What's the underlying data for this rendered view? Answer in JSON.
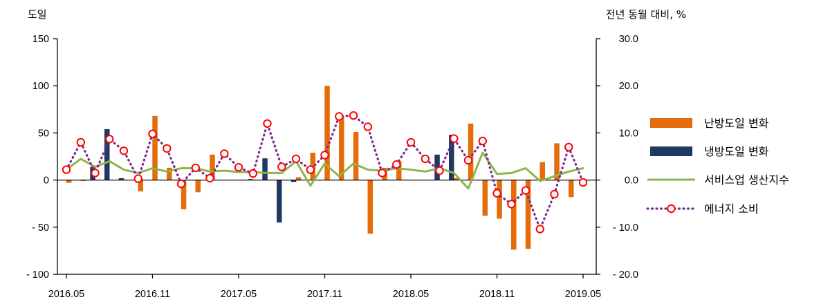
{
  "chart_data": {
    "type": "bar",
    "left_axis_label": "도일",
    "right_axis_label": "전년 동월 대비, %",
    "left_ylim": [
      -100,
      150
    ],
    "left_ticks": [
      -100,
      -50,
      0,
      50,
      100,
      150
    ],
    "left_tick_labels": [
      "- 100",
      "- 50",
      "0",
      "50",
      "100",
      "150"
    ],
    "right_ylim": [
      -20,
      30
    ],
    "right_ticks": [
      -20,
      -10,
      0,
      10,
      20,
      30
    ],
    "right_tick_labels": [
      "- 20.0",
      "- 10.0",
      "0.0",
      "10.0",
      "20.0",
      "30.0"
    ],
    "x_tick_labels": [
      "2016.05",
      "2016.11",
      "2017.05",
      "2017.11",
      "2018.05",
      "2018.11",
      "2019.05"
    ],
    "x_tick_month_index": [
      0,
      6,
      12,
      18,
      24,
      30,
      36
    ],
    "months": [
      "2016.05",
      "2016.06",
      "2016.07",
      "2016.08",
      "2016.09",
      "2016.10",
      "2016.11",
      "2016.12",
      "2017.01",
      "2017.02",
      "2017.03",
      "2017.04",
      "2017.05",
      "2017.06",
      "2017.07",
      "2017.08",
      "2017.09",
      "2017.10",
      "2017.11",
      "2017.12",
      "2018.01",
      "2018.02",
      "2018.03",
      "2018.04",
      "2018.05",
      "2018.06",
      "2018.07",
      "2018.08",
      "2018.09",
      "2018.10",
      "2018.11",
      "2018.12",
      "2019.01",
      "2019.02",
      "2019.03",
      "2019.04",
      "2019.05"
    ],
    "grid": false,
    "legend_position": "right",
    "series": [
      {
        "name": "난방도일 변화",
        "kind": "bar",
        "axis": "left",
        "color": "#E46C0A",
        "values": [
          -3,
          -1,
          0,
          0,
          0,
          -12,
          68,
          13,
          -31,
          -13,
          27,
          0,
          0,
          0,
          0,
          0,
          3,
          29,
          100,
          67,
          51,
          -57,
          13,
          20,
          0,
          0,
          0,
          2,
          60,
          -38,
          -41,
          -74,
          -73,
          19,
          39,
          -18,
          0
        ]
      },
      {
        "name": "냉방도일 변화",
        "kind": "bar",
        "axis": "left",
        "color": "#1F3864",
        "values": [
          0,
          0,
          14,
          54,
          2,
          0,
          0,
          0,
          0,
          0,
          0,
          0,
          0,
          1,
          23,
          -45,
          -2,
          0,
          0,
          0,
          0,
          0,
          0,
          0,
          0,
          0,
          27,
          48,
          0,
          0,
          0,
          0,
          0,
          0,
          0,
          0,
          0
        ]
      },
      {
        "name": "서비스업 생산지수",
        "kind": "line",
        "axis": "right",
        "color": "#8DB54B",
        "values": [
          2.2,
          4.5,
          2.8,
          4.0,
          2.2,
          1.5,
          2.5,
          1.8,
          2.5,
          2.5,
          1.8,
          2.0,
          1.7,
          1.7,
          1.5,
          1.5,
          4.0,
          -1.2,
          3.5,
          0.8,
          3.5,
          2.2,
          2.0,
          2.5,
          2.2,
          1.8,
          2.5,
          1.5,
          -1.8,
          5.8,
          1.3,
          1.5,
          2.5,
          -0.2,
          0.8,
          1.8,
          2.5
        ]
      },
      {
        "name": "에너지 소비",
        "kind": "line",
        "axis": "right",
        "color": "#7B2C8E",
        "marker_color": "#FF0000",
        "values": [
          2.2,
          8.0,
          1.5,
          8.7,
          6.2,
          0.3,
          9.8,
          6.7,
          -0.8,
          2.6,
          0.4,
          5.6,
          2.7,
          1.4,
          12.0,
          2.8,
          4.5,
          2.2,
          5.3,
          13.5,
          13.7,
          11.3,
          1.5,
          3.3,
          8.0,
          4.5,
          2.0,
          8.8,
          4.2,
          8.3,
          -2.8,
          -5.1,
          -2.2,
          -10.4,
          -3.0,
          7.0,
          -0.5
        ]
      }
    ]
  }
}
